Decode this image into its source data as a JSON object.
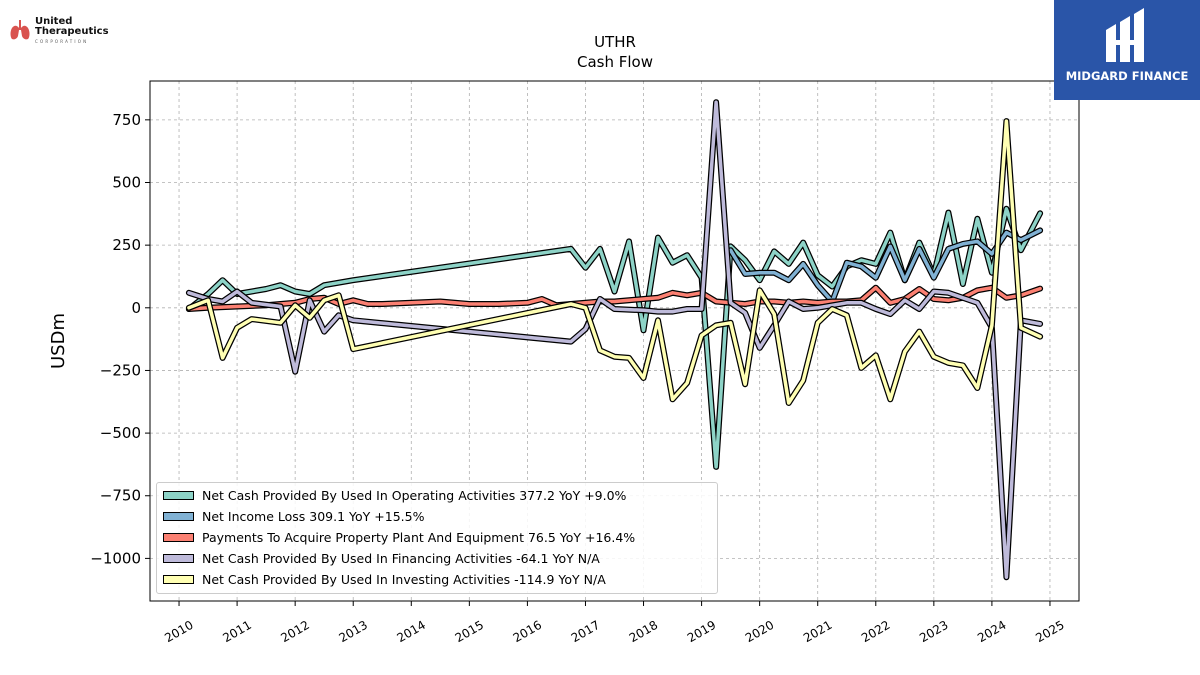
{
  "logos": {
    "left_line1": "United",
    "left_line2": "Therapeutics",
    "left_line3": "CORPORATION",
    "right_text": "MIDGARD FINANCE",
    "right_bg": "#2a55a8"
  },
  "chart_data": {
    "type": "line",
    "title": "UTHR",
    "subtitle": "Cash Flow",
    "ylabel": "USDm",
    "xlabel": "",
    "xlim": [
      2009.5,
      2025.5
    ],
    "ylim": [
      -1170,
      905
    ],
    "xticks": [
      2010,
      2011,
      2012,
      2013,
      2014,
      2015,
      2016,
      2017,
      2018,
      2019,
      2020,
      2021,
      2022,
      2023,
      2024,
      2025
    ],
    "yticks": [
      750,
      500,
      250,
      0,
      -250,
      -500,
      -750,
      -1000
    ],
    "ytick_labels": [
      "750",
      "500",
      "250",
      "0",
      "−250",
      "−500",
      "−750",
      "−1000"
    ],
    "grid": true,
    "legend_position": "bottom-left",
    "series": [
      {
        "name": "Net Cash Provided By Used In Operating Activities  377.2 YoY +9.0%",
        "color": "#8dd3c7",
        "points": [
          [
            2010.17,
            -5
          ],
          [
            2010.5,
            55
          ],
          [
            2010.75,
            110
          ],
          [
            2011.0,
            55
          ],
          [
            2011.5,
            75
          ],
          [
            2011.75,
            90
          ],
          [
            2012.0,
            65
          ],
          [
            2012.25,
            55
          ],
          [
            2012.5,
            90
          ],
          [
            2012.75,
            100
          ],
          [
            2013.0,
            110
          ],
          [
            2016.75,
            235
          ],
          [
            2017.0,
            160
          ],
          [
            2017.25,
            235
          ],
          [
            2017.5,
            65
          ],
          [
            2017.75,
            265
          ],
          [
            2018.0,
            -90
          ],
          [
            2018.25,
            280
          ],
          [
            2018.5,
            180
          ],
          [
            2018.75,
            210
          ],
          [
            2019.0,
            120
          ],
          [
            2019.25,
            -635
          ],
          [
            2019.5,
            245
          ],
          [
            2019.75,
            190
          ],
          [
            2020.0,
            110
          ],
          [
            2020.25,
            225
          ],
          [
            2020.5,
            175
          ],
          [
            2020.75,
            260
          ],
          [
            2021.0,
            130
          ],
          [
            2021.25,
            85
          ],
          [
            2021.5,
            165
          ],
          [
            2021.75,
            190
          ],
          [
            2022.0,
            175
          ],
          [
            2022.25,
            300
          ],
          [
            2022.5,
            110
          ],
          [
            2022.75,
            260
          ],
          [
            2023.0,
            130
          ],
          [
            2023.25,
            380
          ],
          [
            2023.5,
            95
          ],
          [
            2023.75,
            355
          ],
          [
            2024.0,
            140
          ],
          [
            2024.25,
            395
          ],
          [
            2024.5,
            230
          ],
          [
            2024.83,
            377
          ]
        ]
      },
      {
        "name": "Net Income Loss  309.1 YoY +15.5%",
        "color": "#80b1d3",
        "points": [
          [
            2019.5,
            230
          ],
          [
            2019.75,
            135
          ],
          [
            2020.0,
            140
          ],
          [
            2020.25,
            140
          ],
          [
            2020.5,
            110
          ],
          [
            2020.75,
            175
          ],
          [
            2021.0,
            90
          ],
          [
            2021.25,
            25
          ],
          [
            2021.5,
            180
          ],
          [
            2021.75,
            165
          ],
          [
            2022.0,
            120
          ],
          [
            2022.25,
            245
          ],
          [
            2022.5,
            110
          ],
          [
            2022.75,
            235
          ],
          [
            2023.0,
            120
          ],
          [
            2023.25,
            235
          ],
          [
            2023.5,
            255
          ],
          [
            2023.75,
            265
          ],
          [
            2024.0,
            215
          ],
          [
            2024.25,
            300
          ],
          [
            2024.5,
            270
          ],
          [
            2024.83,
            309
          ]
        ]
      },
      {
        "name": "Payments To Acquire Property Plant And Equipment  76.5 YoY +16.4%",
        "color": "#fb8072",
        "points": [
          [
            2010.17,
            -5
          ],
          [
            2010.5,
            0
          ],
          [
            2011.0,
            5
          ],
          [
            2011.5,
            10
          ],
          [
            2012.0,
            20
          ],
          [
            2012.25,
            35
          ],
          [
            2012.5,
            40
          ],
          [
            2012.75,
            15
          ],
          [
            2013.0,
            30
          ],
          [
            2013.25,
            15
          ],
          [
            2013.5,
            15
          ],
          [
            2014.0,
            20
          ],
          [
            2014.5,
            25
          ],
          [
            2015.0,
            15
          ],
          [
            2015.5,
            15
          ],
          [
            2016.0,
            20
          ],
          [
            2016.25,
            35
          ],
          [
            2016.5,
            10
          ],
          [
            2016.75,
            15
          ],
          [
            2017.0,
            20
          ],
          [
            2017.25,
            25
          ],
          [
            2017.5,
            25
          ],
          [
            2017.75,
            30
          ],
          [
            2018.0,
            35
          ],
          [
            2018.25,
            40
          ],
          [
            2018.5,
            60
          ],
          [
            2018.75,
            50
          ],
          [
            2019.0,
            60
          ],
          [
            2019.25,
            25
          ],
          [
            2019.5,
            20
          ],
          [
            2019.75,
            15
          ],
          [
            2020.0,
            25
          ],
          [
            2020.25,
            25
          ],
          [
            2020.5,
            20
          ],
          [
            2020.75,
            25
          ],
          [
            2021.0,
            20
          ],
          [
            2021.25,
            25
          ],
          [
            2021.5,
            25
          ],
          [
            2021.75,
            30
          ],
          [
            2022.0,
            80
          ],
          [
            2022.25,
            20
          ],
          [
            2022.5,
            35
          ],
          [
            2022.75,
            75
          ],
          [
            2023.0,
            35
          ],
          [
            2023.25,
            30
          ],
          [
            2023.5,
            40
          ],
          [
            2023.75,
            70
          ],
          [
            2024.0,
            80
          ],
          [
            2024.25,
            40
          ],
          [
            2024.5,
            50
          ],
          [
            2024.83,
            76.5
          ]
        ]
      },
      {
        "name": "Net Cash Provided By Used In Financing Activities  -64.1 YoY N/A",
        "color": "#bebada",
        "points": [
          [
            2010.17,
            60
          ],
          [
            2010.5,
            35
          ],
          [
            2010.75,
            25
          ],
          [
            2011.0,
            65
          ],
          [
            2011.25,
            20
          ],
          [
            2011.75,
            5
          ],
          [
            2012.0,
            -255
          ],
          [
            2012.25,
            30
          ],
          [
            2012.5,
            -95
          ],
          [
            2012.75,
            -30
          ],
          [
            2013.0,
            -50
          ],
          [
            2016.75,
            -135
          ],
          [
            2017.0,
            -85
          ],
          [
            2017.25,
            35
          ],
          [
            2017.5,
            -5
          ],
          [
            2018.0,
            -10
          ],
          [
            2018.25,
            -15
          ],
          [
            2018.5,
            -15
          ],
          [
            2018.75,
            -5
          ],
          [
            2019.0,
            -5
          ],
          [
            2019.25,
            820
          ],
          [
            2019.5,
            20
          ],
          [
            2019.75,
            -20
          ],
          [
            2020.0,
            -160
          ],
          [
            2020.25,
            -70
          ],
          [
            2020.5,
            25
          ],
          [
            2020.75,
            -5
          ],
          [
            2021.0,
            0
          ],
          [
            2021.25,
            10
          ],
          [
            2021.5,
            20
          ],
          [
            2021.75,
            20
          ],
          [
            2022.0,
            -5
          ],
          [
            2022.25,
            -25
          ],
          [
            2022.5,
            30
          ],
          [
            2022.75,
            -5
          ],
          [
            2023.0,
            65
          ],
          [
            2023.25,
            60
          ],
          [
            2023.5,
            40
          ],
          [
            2023.75,
            20
          ],
          [
            2024.0,
            -80
          ],
          [
            2024.25,
            -1075
          ],
          [
            2024.5,
            -50
          ],
          [
            2024.83,
            -64.1
          ]
        ]
      },
      {
        "name": "Net Cash Provided By Used In Investing Activities  -114.9 YoY N/A",
        "color": "#ffffb3",
        "points": [
          [
            2010.17,
            0
          ],
          [
            2010.5,
            30
          ],
          [
            2010.75,
            -200
          ],
          [
            2011.0,
            -80
          ],
          [
            2011.25,
            -45
          ],
          [
            2011.75,
            -60
          ],
          [
            2012.0,
            10
          ],
          [
            2012.25,
            -40
          ],
          [
            2012.5,
            30
          ],
          [
            2012.75,
            50
          ],
          [
            2013.0,
            -165
          ],
          [
            2016.75,
            15
          ],
          [
            2017.0,
            0
          ],
          [
            2017.25,
            -170
          ],
          [
            2017.5,
            -195
          ],
          [
            2017.75,
            -200
          ],
          [
            2018.0,
            -280
          ],
          [
            2018.25,
            -50
          ],
          [
            2018.5,
            -365
          ],
          [
            2018.75,
            -300
          ],
          [
            2019.0,
            -110
          ],
          [
            2019.25,
            -70
          ],
          [
            2019.5,
            -60
          ],
          [
            2019.75,
            -305
          ],
          [
            2020.0,
            70
          ],
          [
            2020.25,
            -25
          ],
          [
            2020.5,
            -380
          ],
          [
            2020.75,
            -290
          ],
          [
            2021.0,
            -60
          ],
          [
            2021.25,
            -5
          ],
          [
            2021.5,
            -30
          ],
          [
            2021.75,
            -240
          ],
          [
            2022.0,
            -190
          ],
          [
            2022.25,
            -365
          ],
          [
            2022.5,
            -175
          ],
          [
            2022.75,
            -95
          ],
          [
            2023.0,
            -195
          ],
          [
            2023.25,
            -220
          ],
          [
            2023.5,
            -230
          ],
          [
            2023.75,
            -320
          ],
          [
            2024.0,
            -70
          ],
          [
            2024.25,
            745
          ],
          [
            2024.5,
            -80
          ],
          [
            2024.83,
            -114.9
          ]
        ]
      }
    ]
  }
}
